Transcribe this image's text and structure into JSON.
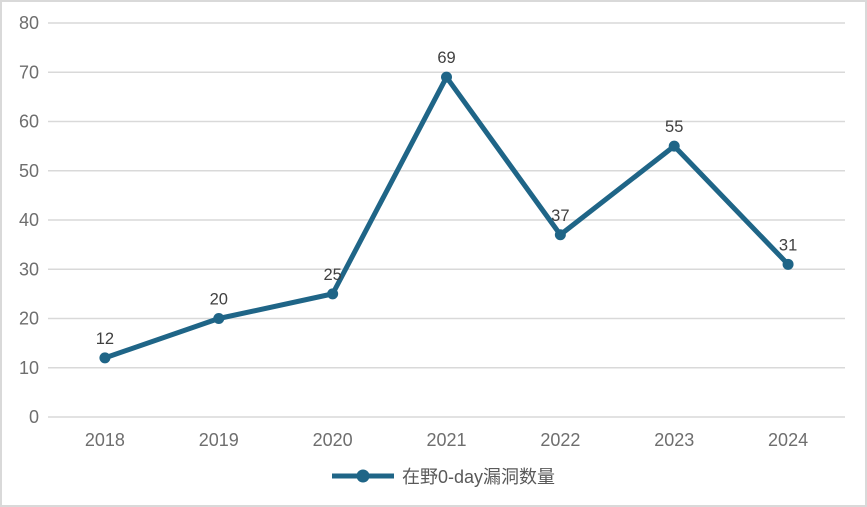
{
  "chart_data": {
    "type": "line",
    "title": "",
    "categories": [
      "2018",
      "2019",
      "2020",
      "2021",
      "2022",
      "2023",
      "2024"
    ],
    "series": [
      {
        "name": "在野0-day漏洞数量",
        "values": [
          12,
          20,
          25,
          69,
          37,
          55,
          31
        ]
      }
    ],
    "data_labels": [
      "12",
      "20",
      "25",
      "69",
      "37",
      "55",
      "31"
    ],
    "xlabel": "",
    "ylabel": "",
    "ylim": [
      0,
      80
    ],
    "ytick_step": 10,
    "ytick_labels": [
      "0",
      "10",
      "20",
      "30",
      "40",
      "50",
      "60",
      "70",
      "80"
    ],
    "grid": true,
    "legend_position": "bottom-center",
    "colors": {
      "line": "#1F6587",
      "marker": "#1F6587",
      "grid": "#D9D9D9",
      "axis_line": "#D9D9D9",
      "axis_label": "#6E6E6E",
      "data_label": "#404040",
      "legend_label": "#595959",
      "background": "#FFFFFF",
      "border": "#D9D9D9"
    }
  },
  "legend": {
    "label": "在野0-day漏洞数量"
  }
}
